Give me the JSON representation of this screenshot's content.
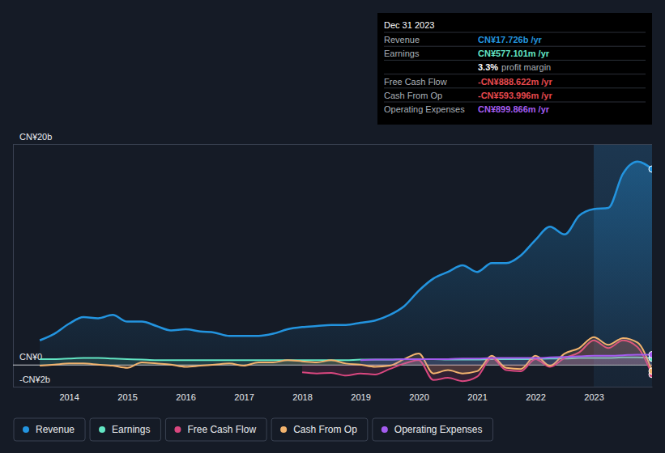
{
  "chart_data": {
    "type": "line",
    "x": [
      2013.5,
      2013.75,
      2014,
      2014.25,
      2014.5,
      2014.75,
      2015,
      2015.25,
      2015.5,
      2015.75,
      2016,
      2016.25,
      2016.5,
      2016.75,
      2017,
      2017.25,
      2017.5,
      2017.75,
      2018,
      2018.25,
      2018.5,
      2018.75,
      2019,
      2019.25,
      2019.5,
      2019.75,
      2020,
      2020.25,
      2020.5,
      2020.75,
      2021,
      2021.25,
      2021.5,
      2021.75,
      2022,
      2022.25,
      2022.5,
      2022.75,
      2023,
      2023.25,
      2023.5,
      2023.75,
      2024
    ],
    "xlim": [
      2013.04,
      2024
    ],
    "xticks": [
      2014,
      2015,
      2016,
      2017,
      2018,
      2019,
      2020,
      2021,
      2022,
      2023
    ],
    "ylim": [
      -2,
      20
    ],
    "yticks": [
      {
        "value": -2,
        "label": "-CN¥2b"
      },
      {
        "value": 0,
        "label": "CN¥0"
      },
      {
        "value": 20,
        "label": "CN¥20b"
      }
    ],
    "grid": true,
    "legend": "bottom-left",
    "series": [
      {
        "name": "Revenue",
        "color": "#2394df",
        "values": [
          2.2,
          2.8,
          3.7,
          4.3,
          4.2,
          4.5,
          3.9,
          3.9,
          3.5,
          3.1,
          3.2,
          3.0,
          2.9,
          2.6,
          2.6,
          2.6,
          2.8,
          3.2,
          3.4,
          3.5,
          3.6,
          3.6,
          3.8,
          4.0,
          4.5,
          5.3,
          6.7,
          7.8,
          8.4,
          9.0,
          8.4,
          9.2,
          9.2,
          9.9,
          11.3,
          12.5,
          11.8,
          13.5,
          14.1,
          14.2,
          17.3,
          18.4,
          17.726
        ]
      },
      {
        "name": "Earnings",
        "color": "#63e6c4",
        "values": [
          0.5,
          0.5,
          0.55,
          0.6,
          0.6,
          0.55,
          0.5,
          0.45,
          0.4,
          0.4,
          0.4,
          0.4,
          0.4,
          0.4,
          0.4,
          0.4,
          0.4,
          0.4,
          0.4,
          0.4,
          0.4,
          0.4,
          0.45,
          0.45,
          0.45,
          0.5,
          0.5,
          0.5,
          0.45,
          0.45,
          0.45,
          0.5,
          0.5,
          0.5,
          0.5,
          0.55,
          0.55,
          0.6,
          0.6,
          0.6,
          0.65,
          0.65,
          0.577
        ]
      },
      {
        "name": "Free Cash Flow",
        "color": "#d9477f",
        "values": [
          null,
          null,
          null,
          null,
          null,
          null,
          null,
          null,
          null,
          null,
          null,
          null,
          null,
          null,
          null,
          null,
          null,
          null,
          -0.7,
          -0.8,
          -0.75,
          -1.0,
          -0.8,
          -0.9,
          -0.4,
          0.1,
          0.4,
          -1.4,
          -1.2,
          -1.5,
          -1.1,
          0.6,
          -0.5,
          -0.6,
          0.5,
          -0.2,
          0.6,
          1.1,
          2.2,
          1.5,
          2.2,
          1.6,
          -0.889
        ]
      },
      {
        "name": "Cash From Op",
        "color": "#f2b36e",
        "values": [
          -0.1,
          0.0,
          0.1,
          0.1,
          0.0,
          -0.1,
          -0.3,
          0.2,
          0.1,
          0.0,
          -0.2,
          -0.1,
          0.0,
          0.1,
          -0.1,
          0.2,
          0.2,
          0.4,
          0.3,
          0.2,
          0.4,
          0.1,
          0.0,
          -0.2,
          -0.1,
          0.5,
          1.0,
          -0.8,
          -0.5,
          -0.8,
          -0.6,
          0.8,
          -0.3,
          -0.4,
          0.8,
          -0.1,
          1.0,
          1.5,
          2.5,
          1.8,
          2.4,
          2.0,
          -0.594
        ]
      },
      {
        "name": "Operating Expenses",
        "color": "#a45cf0",
        "values": [
          null,
          null,
          null,
          null,
          null,
          null,
          null,
          null,
          null,
          null,
          null,
          null,
          null,
          null,
          null,
          null,
          null,
          null,
          null,
          null,
          null,
          null,
          0.4,
          0.45,
          0.45,
          0.5,
          0.5,
          0.5,
          0.5,
          0.55,
          0.55,
          0.6,
          0.6,
          0.6,
          0.6,
          0.65,
          0.7,
          0.75,
          0.8,
          0.8,
          0.85,
          0.9,
          0.9
        ]
      }
    ],
    "annotations": {
      "title": "Dec 31 2023",
      "rows": [
        {
          "label": "Revenue",
          "value": "CN¥17.726b /yr",
          "color": "#2394df"
        },
        {
          "label": "Earnings",
          "value": "CN¥577.101m /yr",
          "color": "#63e6c4"
        },
        {
          "value": "3.3%",
          "text": "profit margin",
          "color": "#ffffff"
        },
        {
          "label": "Free Cash Flow",
          "value": "-CN¥888.622m /yr",
          "color": "#e5484d"
        },
        {
          "label": "Cash From Op",
          "value": "-CN¥593.996m /yr",
          "color": "#e5484d"
        },
        {
          "label": "Operating Expenses",
          "value": "CN¥899.866m /yr",
          "color": "#a45cf0"
        }
      ]
    }
  }
}
